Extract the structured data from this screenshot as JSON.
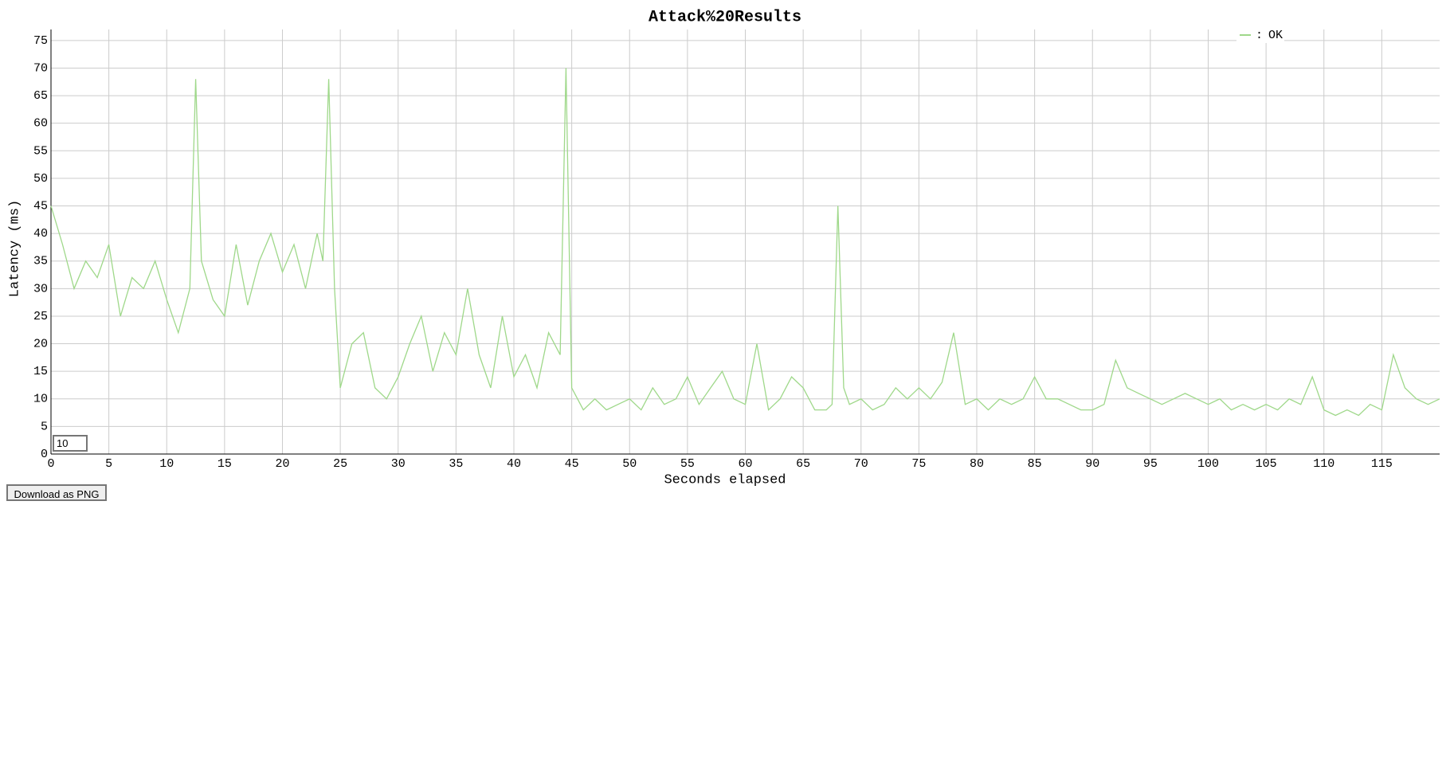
{
  "chart_data": {
    "type": "line",
    "title": "Attack%20Results",
    "x_label": "Seconds elapsed",
    "y_label": "Latency (ms)",
    "xlim": [
      0,
      120
    ],
    "ylim": [
      0,
      77
    ],
    "xticks": [
      0,
      5,
      10,
      15,
      20,
      25,
      30,
      35,
      40,
      45,
      50,
      55,
      60,
      65,
      70,
      75,
      80,
      85,
      90,
      95,
      100,
      105,
      110,
      115
    ],
    "yticks": [
      0,
      5,
      10,
      15,
      20,
      25,
      30,
      35,
      40,
      45,
      50,
      55,
      60,
      65,
      70,
      75
    ],
    "grid": true,
    "legend_position": "top-right",
    "legend_separator": ":",
    "x": [
      0,
      1,
      2,
      3,
      4,
      5,
      6,
      7,
      8,
      9,
      10,
      11,
      12,
      12.5,
      13,
      14,
      15,
      16,
      17,
      18,
      19,
      20,
      21,
      22,
      23,
      23.5,
      24,
      24.5,
      25,
      26,
      27,
      28,
      29,
      30,
      31,
      32,
      33,
      34,
      35,
      36,
      37,
      38,
      39,
      40,
      41,
      42,
      43,
      44,
      44.5,
      45,
      46,
      47,
      48,
      49,
      50,
      51,
      52,
      53,
      54,
      55,
      56,
      57,
      58,
      59,
      60,
      61,
      62,
      63,
      64,
      65,
      66,
      67,
      67.5,
      68,
      68.5,
      69,
      70,
      71,
      72,
      73,
      74,
      75,
      76,
      77,
      78,
      79,
      80,
      81,
      82,
      83,
      84,
      85,
      86,
      87,
      88,
      89,
      90,
      91,
      92,
      93,
      94,
      95,
      96,
      97,
      98,
      99,
      100,
      101,
      102,
      103,
      104,
      105,
      106,
      107,
      108,
      109,
      110,
      111,
      112,
      113,
      114,
      115,
      116,
      117,
      118,
      119,
      120
    ],
    "series": [
      {
        "name": "OK",
        "color": "#9fd88a",
        "values": [
          45,
          38,
          30,
          35,
          32,
          38,
          25,
          32,
          30,
          35,
          28,
          22,
          30,
          68,
          35,
          28,
          25,
          38,
          27,
          35,
          40,
          33,
          38,
          30,
          40,
          35,
          68,
          30,
          12,
          20,
          22,
          12,
          10,
          14,
          20,
          25,
          15,
          22,
          18,
          30,
          18,
          12,
          25,
          14,
          18,
          12,
          22,
          18,
          70,
          12,
          8,
          10,
          8,
          9,
          10,
          8,
          12,
          9,
          10,
          14,
          9,
          12,
          15,
          10,
          9,
          20,
          8,
          10,
          14,
          12,
          8,
          8,
          9,
          45,
          12,
          9,
          10,
          8,
          9,
          12,
          10,
          12,
          10,
          13,
          22,
          9,
          10,
          8,
          10,
          9,
          10,
          14,
          10,
          10,
          9,
          8,
          8,
          9,
          17,
          12,
          11,
          10,
          9,
          10,
          11,
          10,
          9,
          10,
          8,
          9,
          8,
          9,
          8,
          10,
          9,
          14,
          8,
          7,
          8,
          7,
          9,
          8,
          18,
          12,
          10,
          9,
          10
        ]
      }
    ]
  },
  "ui": {
    "roll_period": "10",
    "download_button": "Download as PNG"
  }
}
